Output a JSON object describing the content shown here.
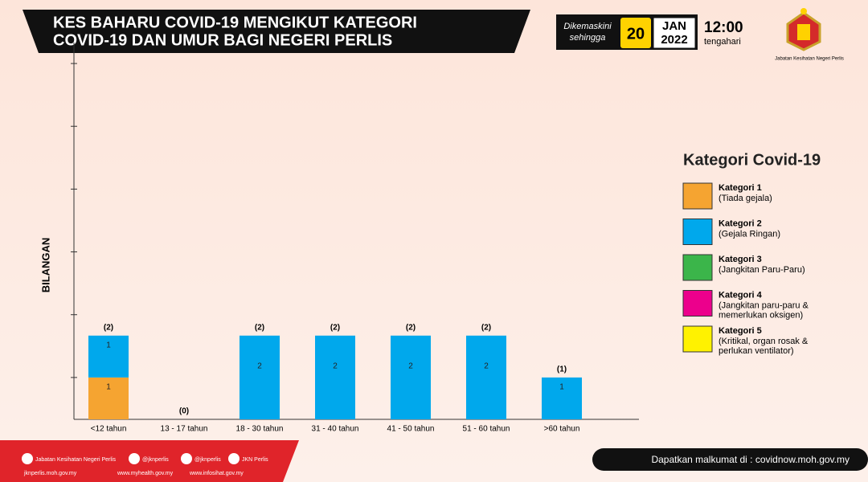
{
  "header": {
    "title_lines": [
      "KES BAHARU COVID-19 MENGIKUT KATEGORI",
      "COVID-19 DAN UMUR BAGI NEGERI PERLIS"
    ],
    "updated_label": [
      "Dikemaskini",
      "sehingga"
    ],
    "day": "20",
    "month": "JAN",
    "year": "2022",
    "time": "12:00",
    "time_note": "tengahari",
    "agency": "Jabatan Kesihatan Negeri Perlis"
  },
  "chart_data": {
    "type": "stacked_bar",
    "y_label": "BILANGAN",
    "legend_title": "Kategori Covid-19",
    "categories": [
      "<12 tahun",
      "13 - 17 tahun",
      "18 - 30 tahun",
      "31 - 40 tahun",
      "41 - 50 tahun",
      "51 - 60 tahun",
      ">60 tahun"
    ],
    "series": [
      {
        "name": "Kategori 1",
        "description": [
          "(Tiada gejala)"
        ],
        "color": "#f5a431",
        "values": [
          1,
          0,
          0,
          0,
          0,
          0,
          0
        ]
      },
      {
        "name": "Kategori 2",
        "description": [
          "(Gejala Ringan)"
        ],
        "color": "#00a8ec",
        "values": [
          1,
          0,
          2,
          2,
          2,
          2,
          1
        ]
      },
      {
        "name": "Kategori 3",
        "description": [
          "(Jangkitan Paru-Paru)"
        ],
        "color": "#3bb54a",
        "values": [
          0,
          0,
          0,
          0,
          0,
          0,
          0
        ]
      },
      {
        "name": "Kategori 4",
        "description": [
          "(Jangkitan paru-paru &",
          "memerlukan oksigen)"
        ],
        "color": "#ec008c",
        "values": [
          0,
          0,
          0,
          0,
          0,
          0,
          0
        ]
      },
      {
        "name": "Kategori 5",
        "description": [
          "(Kritikal, organ rosak &",
          "perlukan ventilator)"
        ],
        "color": "#fff200",
        "values": [
          0,
          0,
          0,
          0,
          0,
          0,
          0
        ]
      }
    ],
    "totals": {
      "values": [
        2,
        0,
        2,
        2,
        2,
        2,
        1
      ],
      "value_labels": [
        "(2)",
        "(0)",
        "(2)",
        "(2)",
        "(2)",
        "(2)",
        "(1)"
      ]
    },
    "ylim": [
      0,
      9
    ],
    "yticks": [
      1,
      2.5,
      4,
      5.5,
      7,
      8.5
    ]
  },
  "footer": {
    "social": [
      "Jabatan Kesihatan Negeri Perlis",
      "@jknperlis",
      "@jknperlis",
      "JKN Perlis"
    ],
    "websites": [
      "jknperlis.moh.gov.my",
      "www.myhealth.gov.my",
      "www.infosihat.gov.my"
    ],
    "info": "Dapatkan malkumat di : covidnow.moh.gov.my"
  }
}
